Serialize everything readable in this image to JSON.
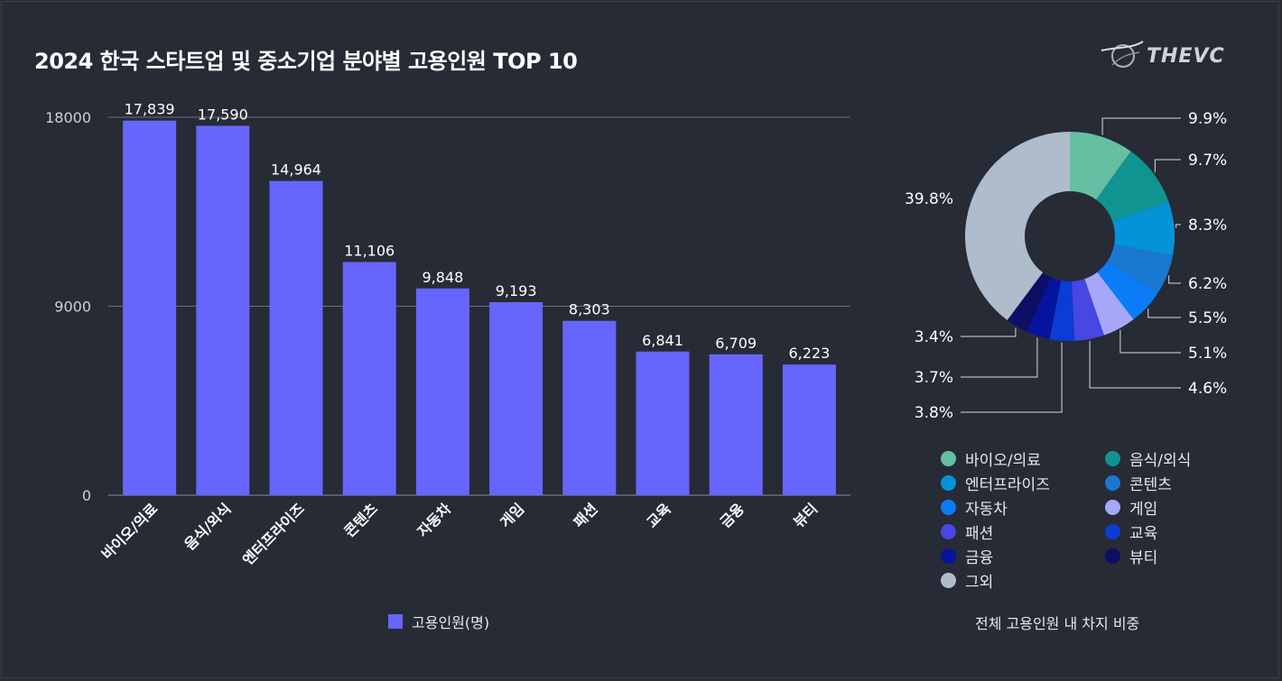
{
  "title": "2024 한국 스타트업 및 중소기업 분야별 고용인원 TOP 10",
  "logo": {
    "text": "THEVC",
    "icon": "globe-swoosh-icon"
  },
  "chart_data": [
    {
      "type": "bar",
      "title": "2024 한국 스타트업 및 중소기업 분야별 고용인원 TOP 10",
      "categories": [
        "바이오/의료",
        "음식/외식",
        "엔터프라이즈",
        "콘텐츠",
        "자동차",
        "게임",
        "패션",
        "교육",
        "금융",
        "뷰티"
      ],
      "series": [
        {
          "name": "고용인원(명)",
          "values": [
            17839,
            17590,
            14964,
            11106,
            9848,
            9193,
            8303,
            6841,
            6709,
            6223
          ],
          "value_labels": [
            "17,839",
            "17,590",
            "14,964",
            "11,106",
            "9,848",
            "9,193",
            "8,303",
            "6,841",
            "6,709",
            "6,223"
          ],
          "color": "#6666ff"
        }
      ],
      "ylim": [
        0,
        18000
      ],
      "yticks": [
        0,
        9000,
        18000
      ],
      "ytick_labels": [
        "0",
        "9000",
        "18000"
      ],
      "grid": true,
      "legend": "bottom-center"
    },
    {
      "type": "pie",
      "title": "전체 고용인원 내 차지 비중",
      "donut": true,
      "slices": [
        {
          "label": "바이오/의료",
          "value": 9.9,
          "text": "9.9%",
          "color": "#66bfa3"
        },
        {
          "label": "음식/외식",
          "value": 9.7,
          "text": "9.7%",
          "color": "#0f9491"
        },
        {
          "label": "엔터프라이즈",
          "value": 8.3,
          "text": "8.3%",
          "color": "#0593d7"
        },
        {
          "label": "콘텐츠",
          "value": 6.2,
          "text": "6.2%",
          "color": "#1b78d0"
        },
        {
          "label": "자동차",
          "value": 5.5,
          "text": "5.5%",
          "color": "#0a7cf6"
        },
        {
          "label": "게임",
          "value": 5.1,
          "text": "5.1%",
          "color": "#a7a7fa"
        },
        {
          "label": "패션",
          "value": 4.6,
          "text": "4.6%",
          "color": "#4747e3"
        },
        {
          "label": "교육",
          "value": 3.8,
          "text": "3.8%",
          "color": "#0b3cd6"
        },
        {
          "label": "금융",
          "value": 3.7,
          "text": "3.7%",
          "color": "#06139e"
        },
        {
          "label": "뷰티",
          "value": 3.4,
          "text": "3.4%",
          "color": "#0c0f63"
        },
        {
          "label": "그외",
          "value": 39.8,
          "text": "39.8%",
          "color": "#aebccc"
        }
      ],
      "legend": "bottom"
    }
  ]
}
